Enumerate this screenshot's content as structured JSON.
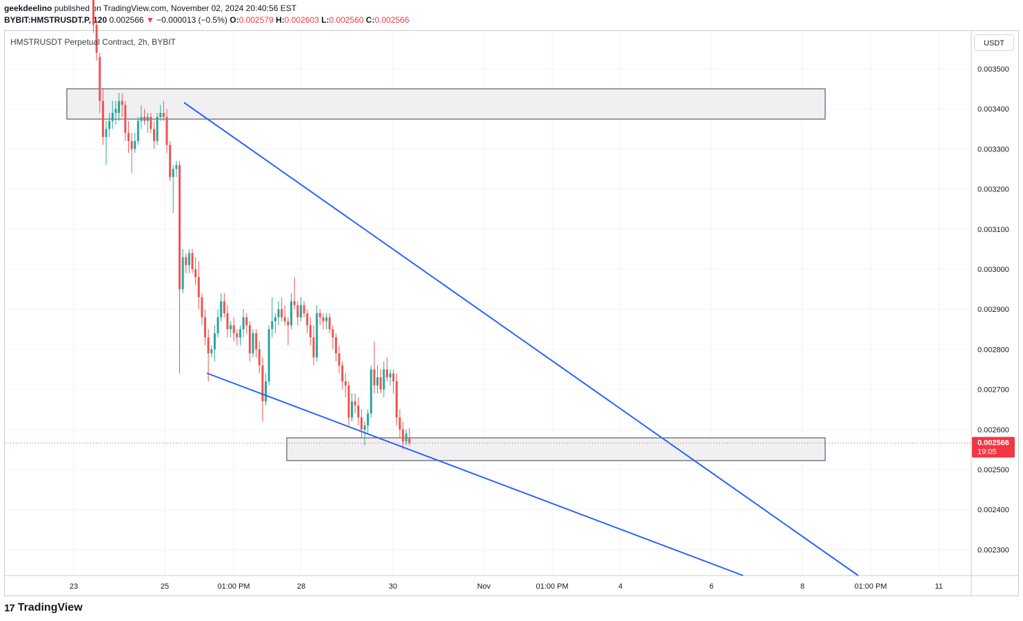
{
  "header": {
    "publisher": "geekdeelino",
    "published_text": "published on TradingView.com, November 02, 2024 20:40:56 EST",
    "symbol": "BYBIT:HMSTRUSDT.P, 120",
    "last": "0.002566",
    "change_arrow": "▼",
    "change": "−0.000013 (−0.5%)",
    "o_label": "O:",
    "o": "0.002579",
    "h_label": "H:",
    "h": "0.002603",
    "l_label": "L:",
    "l": "0.002560",
    "c_label": "C:",
    "c": "0.002566"
  },
  "pane_title": "HMSTRUSDT Perpetual Contract, 2h, BYBIT",
  "currency_button": "USDT",
  "price_tag": {
    "price": "0.002566",
    "countdown": "19:05"
  },
  "brand": {
    "logo_text": "TradingView",
    "logo_mark": "17"
  },
  "colors": {
    "up": "#26a69a",
    "down": "#ef5350",
    "trendline": "#2962ff",
    "zone_fill": "#f0f0f3",
    "zone_stroke": "#787b86",
    "last_price": "#f23645"
  },
  "chart_data": {
    "type": "candlestick",
    "title": "HMSTRUSDT Perpetual Contract, 2h, BYBIT",
    "y_ticks": [
      "0.003500",
      "0.003400",
      "0.003300",
      "0.003200",
      "0.003100",
      "0.003000",
      "0.002900",
      "0.002800",
      "0.002700",
      "0.002600",
      "0.002500",
      "0.002400",
      "0.002300"
    ],
    "x_ticks": [
      "23",
      "25",
      "01:00 PM",
      "28",
      "30",
      "Nov",
      "01:00 PM",
      "4",
      "6",
      "8",
      "01:00 PM",
      "11"
    ],
    "ylim": [
      0.002235,
      0.003655
    ],
    "last_price": 0.002566,
    "candles": [
      [
        0.0037,
        0.00371,
        0.00359,
        0.00361
      ],
      [
        0.00361,
        0.00362,
        0.00352,
        0.00354
      ],
      [
        0.00353,
        0.00354,
        0.00339,
        0.00342
      ],
      [
        0.00342,
        0.00345,
        0.00331,
        0.00333
      ],
      [
        0.00333,
        0.00337,
        0.00326,
        0.00335
      ],
      [
        0.00335,
        0.00339,
        0.00333,
        0.00337
      ],
      [
        0.00337,
        0.00342,
        0.00335,
        0.00339
      ],
      [
        0.00339,
        0.00342,
        0.00336,
        0.0034
      ],
      [
        0.00339,
        0.00344,
        0.00337,
        0.00342
      ],
      [
        0.00342,
        0.00344,
        0.00338,
        0.00341
      ],
      [
        0.00341,
        0.00342,
        0.00332,
        0.00334
      ],
      [
        0.00334,
        0.00337,
        0.00329,
        0.00332
      ],
      [
        0.00332,
        0.00334,
        0.00324,
        0.0033
      ],
      [
        0.0033,
        0.00334,
        0.00329,
        0.00332
      ],
      [
        0.00332,
        0.00338,
        0.00331,
        0.00337
      ],
      [
        0.00337,
        0.00341,
        0.00335,
        0.00338
      ],
      [
        0.00338,
        0.0034,
        0.00336,
        0.00337
      ],
      [
        0.00337,
        0.00339,
        0.00334,
        0.00338
      ],
      [
        0.00338,
        0.00339,
        0.00334,
        0.00335
      ],
      [
        0.00335,
        0.00337,
        0.0033,
        0.00332
      ],
      [
        0.00332,
        0.00339,
        0.00331,
        0.00338
      ],
      [
        0.00338,
        0.00341,
        0.00337,
        0.00339
      ],
      [
        0.00339,
        0.00342,
        0.00337,
        0.00338
      ],
      [
        0.00338,
        0.0034,
        0.00329,
        0.00331
      ],
      [
        0.00331,
        0.00332,
        0.00322,
        0.00323
      ],
      [
        0.00323,
        0.00326,
        0.00314,
        0.00325
      ],
      [
        0.00325,
        0.00327,
        0.00323,
        0.00326
      ],
      [
        0.00326,
        0.00327,
        0.00274,
        0.00295
      ],
      [
        0.00295,
        0.00305,
        0.00294,
        0.00303
      ],
      [
        0.00303,
        0.00304,
        0.00299,
        0.00301
      ],
      [
        0.00301,
        0.00305,
        0.00299,
        0.00304
      ],
      [
        0.00304,
        0.00305,
        0.00299,
        0.003
      ],
      [
        0.003,
        0.00303,
        0.00296,
        0.00298
      ],
      [
        0.00298,
        0.00302,
        0.0029,
        0.00293
      ],
      [
        0.00293,
        0.00294,
        0.00286,
        0.00288
      ],
      [
        0.00288,
        0.0029,
        0.00281,
        0.00283
      ],
      [
        0.00283,
        0.00285,
        0.00272,
        0.00279
      ],
      [
        0.00279,
        0.00281,
        0.00278,
        0.0028
      ],
      [
        0.0028,
        0.00286,
        0.00277,
        0.00284
      ],
      [
        0.00284,
        0.0029,
        0.00283,
        0.00288
      ],
      [
        0.00288,
        0.00294,
        0.00287,
        0.00292
      ],
      [
        0.00292,
        0.00294,
        0.00288,
        0.00289
      ],
      [
        0.00289,
        0.00291,
        0.00283,
        0.00285
      ],
      [
        0.00285,
        0.00287,
        0.00283,
        0.00286
      ],
      [
        0.00286,
        0.00288,
        0.00282,
        0.00284
      ],
      [
        0.00284,
        0.00285,
        0.00281,
        0.00283
      ],
      [
        0.00283,
        0.00286,
        0.00281,
        0.00285
      ],
      [
        0.00285,
        0.0029,
        0.00283,
        0.00288
      ],
      [
        0.00288,
        0.00289,
        0.00284,
        0.00286
      ],
      [
        0.00286,
        0.00287,
        0.00277,
        0.00279
      ],
      [
        0.00279,
        0.00285,
        0.00278,
        0.00284
      ],
      [
        0.00284,
        0.00285,
        0.00278,
        0.0028
      ],
      [
        0.0028,
        0.00282,
        0.00274,
        0.00276
      ],
      [
        0.00276,
        0.00278,
        0.00262,
        0.00267
      ],
      [
        0.00267,
        0.00274,
        0.00266,
        0.00272
      ],
      [
        0.00272,
        0.00286,
        0.00271,
        0.00285
      ],
      [
        0.00285,
        0.00293,
        0.00283,
        0.00287
      ],
      [
        0.00287,
        0.00289,
        0.00284,
        0.00288
      ],
      [
        0.00288,
        0.00292,
        0.00286,
        0.0029
      ],
      [
        0.0029,
        0.00293,
        0.00287,
        0.00288
      ],
      [
        0.00288,
        0.00291,
        0.00286,
        0.00287
      ],
      [
        0.00287,
        0.00288,
        0.00281,
        0.00286
      ],
      [
        0.00286,
        0.00294,
        0.00285,
        0.00292
      ],
      [
        0.00292,
        0.00298,
        0.0029,
        0.00291
      ],
      [
        0.00291,
        0.00292,
        0.00286,
        0.00288
      ],
      [
        0.00288,
        0.00293,
        0.00287,
        0.00291
      ],
      [
        0.00291,
        0.00292,
        0.00288,
        0.00289
      ],
      [
        0.00289,
        0.0029,
        0.00284,
        0.00286
      ],
      [
        0.00286,
        0.00288,
        0.00281,
        0.00283
      ],
      [
        0.00283,
        0.00286,
        0.00276,
        0.00278
      ],
      [
        0.00278,
        0.00291,
        0.00277,
        0.00289
      ],
      [
        0.00289,
        0.0029,
        0.00286,
        0.00288
      ],
      [
        0.00288,
        0.00289,
        0.00285,
        0.00287
      ],
      [
        0.00287,
        0.00289,
        0.00285,
        0.00288
      ],
      [
        0.00288,
        0.00289,
        0.00284,
        0.00285
      ],
      [
        0.00285,
        0.00286,
        0.0028,
        0.00283
      ],
      [
        0.00283,
        0.00284,
        0.00277,
        0.00279
      ],
      [
        0.00279,
        0.00281,
        0.00274,
        0.00276
      ],
      [
        0.00276,
        0.00277,
        0.0027,
        0.00272
      ],
      [
        0.00272,
        0.00274,
        0.00268,
        0.00271
      ],
      [
        0.00271,
        0.00272,
        0.00261,
        0.00263
      ],
      [
        0.00263,
        0.00269,
        0.00262,
        0.00267
      ],
      [
        0.00267,
        0.00269,
        0.00264,
        0.00266
      ],
      [
        0.00266,
        0.00268,
        0.00261,
        0.00263
      ],
      [
        0.00263,
        0.00265,
        0.00258,
        0.0026
      ],
      [
        0.0026,
        0.00262,
        0.00256,
        0.00261
      ],
      [
        0.00261,
        0.00265,
        0.00259,
        0.00264
      ],
      [
        0.00264,
        0.00276,
        0.00263,
        0.00275
      ],
      [
        0.00275,
        0.00282,
        0.00269,
        0.00271
      ],
      [
        0.00271,
        0.00276,
        0.00269,
        0.00273
      ],
      [
        0.00273,
        0.00275,
        0.00269,
        0.0027
      ],
      [
        0.0027,
        0.00277,
        0.00268,
        0.00275
      ],
      [
        0.00275,
        0.00278,
        0.00272,
        0.00273
      ],
      [
        0.00273,
        0.00275,
        0.00271,
        0.00274
      ],
      [
        0.00274,
        0.00275,
        0.00269,
        0.00272
      ],
      [
        0.00272,
        0.00274,
        0.00261,
        0.00263
      ],
      [
        0.00263,
        0.00265,
        0.00258,
        0.0026
      ],
      [
        0.0026,
        0.00262,
        0.00255,
        0.00257
      ],
      [
        0.00257,
        0.0026,
        0.00256,
        0.00259
      ],
      [
        0.002579,
        0.002603,
        0.00256,
        0.002566
      ]
    ]
  }
}
